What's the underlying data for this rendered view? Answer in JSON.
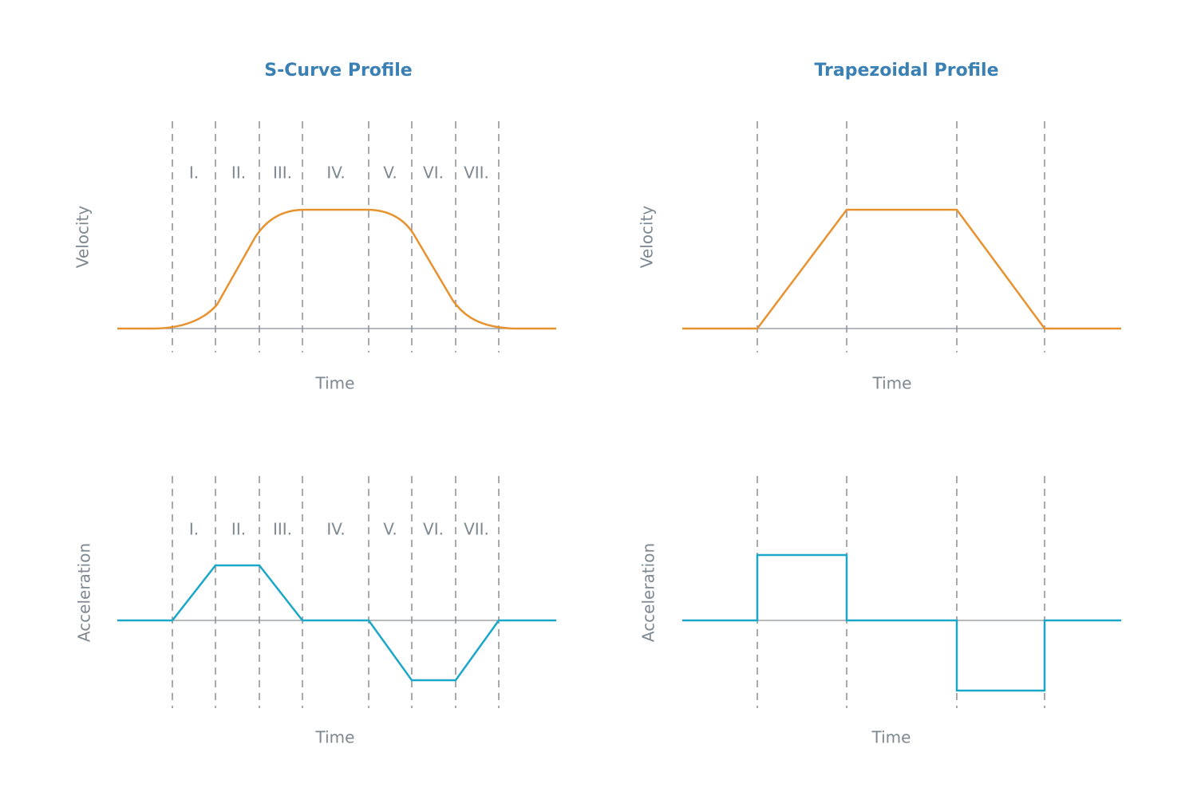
{
  "s_curve": {
    "title": "S-Curve Profile",
    "velocity": {
      "y_label": "Velocity",
      "x_label": "Time",
      "phases": [
        "I.",
        "II.",
        "III.",
        "IV.",
        "V.",
        "VI.",
        "VII."
      ]
    },
    "acceleration": {
      "y_label": "Acceleration",
      "x_label": "Time",
      "phases": [
        "I.",
        "II.",
        "III.",
        "IV.",
        "V.",
        "VI.",
        "VII."
      ]
    }
  },
  "trapezoidal": {
    "title": "Trapezoidal Profile",
    "velocity": {
      "y_label": "Velocity",
      "x_label": "Time"
    },
    "acceleration": {
      "y_label": "Acceleration",
      "x_label": "Time"
    }
  }
}
